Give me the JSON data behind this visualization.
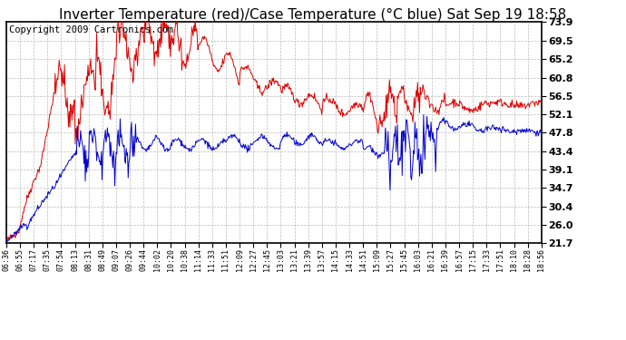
{
  "title": "Inverter Temperature (red)/Case Temperature (°C blue) Sat Sep 19 18:58",
  "copyright": "Copyright 2009 Cartronics.com",
  "yticks": [
    21.7,
    26.0,
    30.4,
    34.7,
    39.1,
    43.4,
    47.8,
    52.1,
    56.5,
    60.8,
    65.2,
    69.5,
    73.9
  ],
  "xtick_labels": [
    "06:36",
    "06:55",
    "07:17",
    "07:35",
    "07:54",
    "08:13",
    "08:31",
    "08:49",
    "09:07",
    "09:26",
    "09:44",
    "10:02",
    "10:20",
    "10:38",
    "11:14",
    "11:33",
    "11:51",
    "12:09",
    "12:27",
    "12:45",
    "13:03",
    "13:21",
    "13:39",
    "13:57",
    "14:15",
    "14:33",
    "14:51",
    "15:09",
    "15:27",
    "15:45",
    "16:03",
    "16:21",
    "16:39",
    "16:57",
    "17:15",
    "17:33",
    "17:51",
    "18:10",
    "18:28",
    "18:56"
  ],
  "ymin": 21.7,
  "ymax": 73.9,
  "bg_color": "#ffffff",
  "plot_bg_color": "#ffffff",
  "grid_color": "#bbbbbb",
  "red_color": "#dd0000",
  "blue_color": "#0000cc",
  "title_fontsize": 11,
  "copyright_fontsize": 7.5
}
